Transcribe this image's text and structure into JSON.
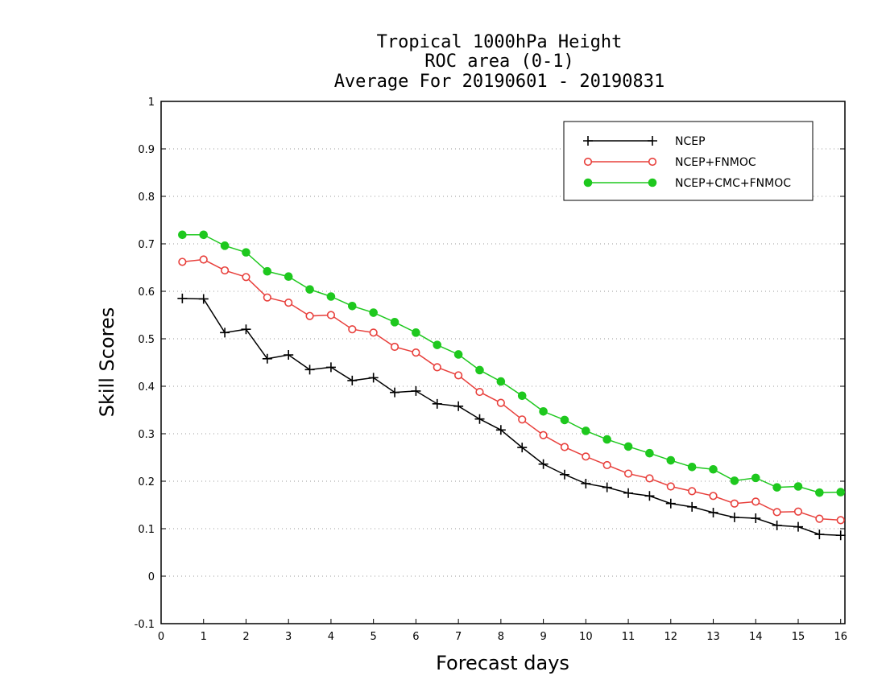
{
  "chart_data": {
    "type": "line",
    "title": "Tropical 1000hPa Height",
    "subtitle": "ROC area (0-1)",
    "subtitle2": "Average For 20190601 - 20190831",
    "xlabel": "Forecast days",
    "ylabel": "Skill Scores",
    "xlim": [
      0,
      16.1
    ],
    "ylim": [
      -0.1,
      1
    ],
    "xticks": [
      0,
      1,
      2,
      3,
      4,
      5,
      6,
      7,
      8,
      9,
      10,
      11,
      12,
      13,
      14,
      15,
      16
    ],
    "xtick_labels": [
      "0",
      "1",
      "2",
      "3",
      "4",
      "5",
      "6",
      "7",
      "8",
      "9",
      "10",
      "11",
      "12",
      "13",
      "14",
      "15",
      "16"
    ],
    "yticks": [
      -0.1,
      0,
      0.1,
      0.2,
      0.3,
      0.4,
      0.5,
      0.6,
      0.7,
      0.8,
      0.9,
      1
    ],
    "ytick_labels": [
      "-0.1",
      "0",
      "0.1",
      "0.2",
      "0.3",
      "0.4",
      "0.5",
      "0.6",
      "0.7",
      "0.8",
      "0.9",
      "1"
    ],
    "grid": "horizontal dotted",
    "legend_position": "top-right",
    "x": [
      0.5,
      1,
      1.5,
      2,
      2.5,
      3,
      3.5,
      4,
      4.5,
      5,
      5.5,
      6,
      6.5,
      7,
      7.5,
      8,
      8.5,
      9,
      9.5,
      10,
      10.5,
      11,
      11.5,
      12,
      12.5,
      13,
      13.5,
      14,
      14.5,
      15,
      15.5,
      16
    ],
    "series": [
      {
        "name": "NCEP",
        "color": "#000000",
        "marker": "plus",
        "values": [
          0.585,
          0.584,
          0.513,
          0.52,
          0.458,
          0.466,
          0.435,
          0.44,
          0.412,
          0.418,
          0.387,
          0.39,
          0.363,
          0.358,
          0.331,
          0.308,
          0.271,
          0.236,
          0.214,
          0.195,
          0.187,
          0.175,
          0.169,
          0.153,
          0.146,
          0.134,
          0.124,
          0.122,
          0.107,
          0.104,
          0.088,
          0.086
        ]
      },
      {
        "name": "NCEP+FNMOC",
        "color": "#e8403c",
        "marker": "open-circle",
        "values": [
          0.662,
          0.667,
          0.644,
          0.63,
          0.587,
          0.576,
          0.548,
          0.55,
          0.52,
          0.513,
          0.483,
          0.471,
          0.44,
          0.423,
          0.388,
          0.365,
          0.33,
          0.297,
          0.272,
          0.252,
          0.234,
          0.216,
          0.206,
          0.189,
          0.179,
          0.169,
          0.153,
          0.157,
          0.135,
          0.136,
          0.121,
          0.118
        ]
      },
      {
        "name": "NCEP+CMC+FNMOC",
        "color": "#1ec81e",
        "marker": "filled-circle",
        "values": [
          0.719,
          0.719,
          0.696,
          0.682,
          0.642,
          0.631,
          0.604,
          0.589,
          0.569,
          0.555,
          0.535,
          0.513,
          0.487,
          0.467,
          0.434,
          0.41,
          0.38,
          0.347,
          0.329,
          0.306,
          0.288,
          0.273,
          0.259,
          0.244,
          0.23,
          0.225,
          0.201,
          0.207,
          0.187,
          0.189,
          0.176,
          0.177
        ]
      }
    ]
  }
}
